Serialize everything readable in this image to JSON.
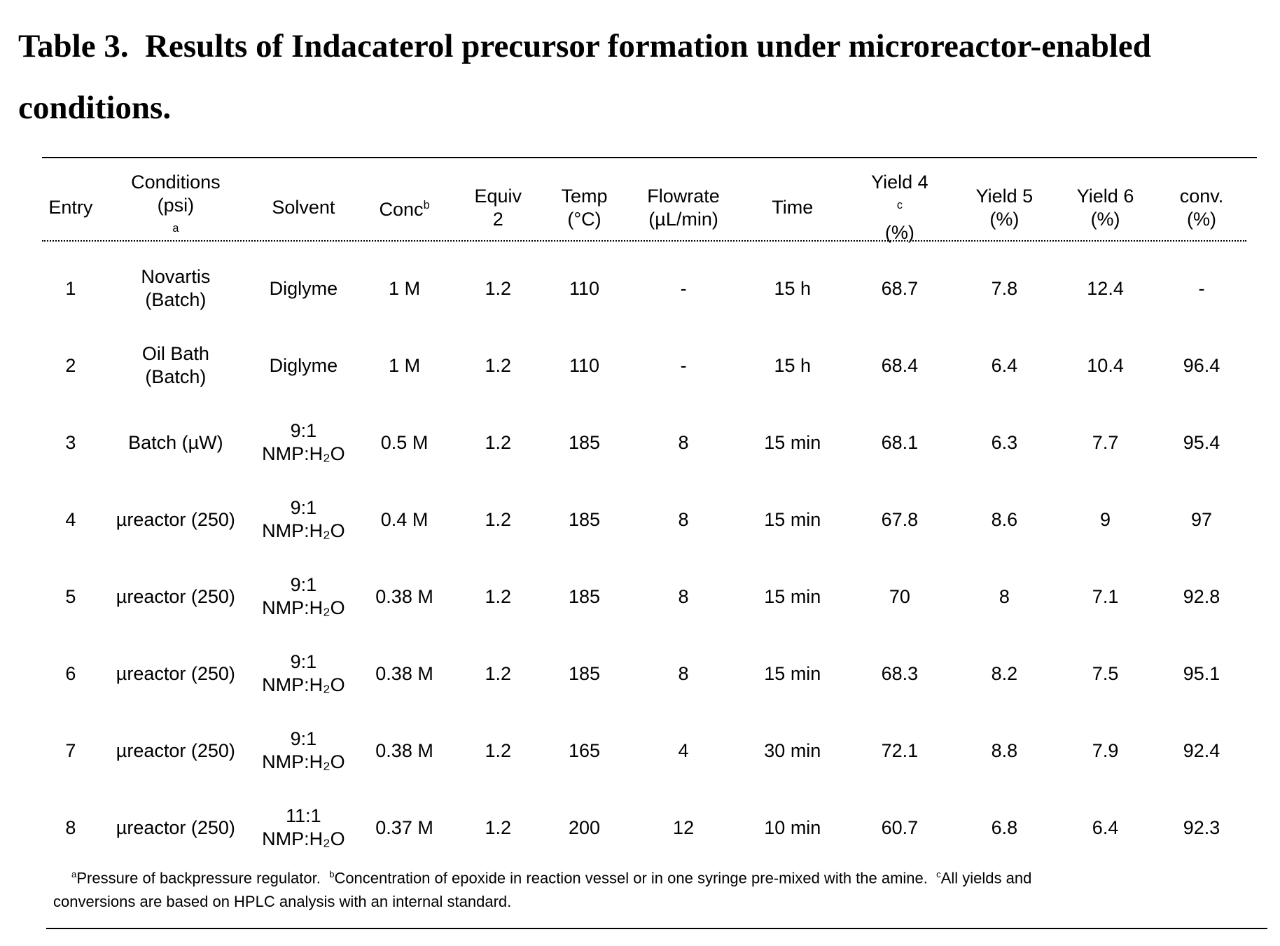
{
  "caption": {
    "label": "Table 3.",
    "text": "Results of Indacaterol precursor formation under microreactor-enabled conditions."
  },
  "table": {
    "headers": [
      {
        "line1": "Entry",
        "line2": ""
      },
      {
        "line1": "Conditions",
        "line2": "(psi)",
        "sup2": "a"
      },
      {
        "line1": "Solvent",
        "line2": ""
      },
      {
        "line1": "Conc",
        "sup1": "b",
        "line2": ""
      },
      {
        "line1": "Equiv",
        "line2": "2"
      },
      {
        "line1": "Temp",
        "line2": "(°C)"
      },
      {
        "line1": "Flowrate",
        "line2": "(µL/min)"
      },
      {
        "line1": "Time",
        "line2": ""
      },
      {
        "line1": "Yield 4",
        "sup1": "c",
        "line2": "(%)"
      },
      {
        "line1": "Yield 5",
        "line2": "(%)"
      },
      {
        "line1": "Yield 6",
        "line2": "(%)"
      },
      {
        "line1": "conv.",
        "line2": "(%)"
      }
    ],
    "rows": [
      {
        "entry": "1",
        "cond1": "Novartis",
        "cond2": "(Batch)",
        "solv1": "Diglyme",
        "solv2": "",
        "conc": "1 M",
        "equiv": "1.2",
        "temp": "110",
        "flow": "-",
        "time": "15 h",
        "y4": "68.7",
        "y5": "7.8",
        "y6": "12.4",
        "conv": "-"
      },
      {
        "entry": "2",
        "cond1": "Oil Bath",
        "cond2": "(Batch)",
        "solv1": "Diglyme",
        "solv2": "",
        "conc": "1 M",
        "equiv": "1.2",
        "temp": "110",
        "flow": "-",
        "time": "15 h",
        "y4": "68.4",
        "y5": "6.4",
        "y6": "10.4",
        "conv": "96.4"
      },
      {
        "entry": "3",
        "cond1": "Batch (µW)",
        "cond2": "",
        "solv1": "9:1",
        "solv2": "NMP:H₂O",
        "conc": "0.5 M",
        "equiv": "1.2",
        "temp": "185",
        "flow": "8",
        "time": "15 min",
        "y4": "68.1",
        "y5": "6.3",
        "y6": "7.7",
        "conv": "95.4"
      },
      {
        "entry": "4",
        "cond1": "µreactor (250)",
        "cond2": "",
        "solv1": "9:1",
        "solv2": "NMP:H₂O",
        "conc": "0.4 M",
        "equiv": "1.2",
        "temp": "185",
        "flow": "8",
        "time": "15 min",
        "y4": "67.8",
        "y5": "8.6",
        "y6": "9",
        "conv": "97"
      },
      {
        "entry": "5",
        "cond1": "µreactor (250)",
        "cond2": "",
        "solv1": "9:1",
        "solv2": "NMP:H₂O",
        "conc": "0.38 M",
        "equiv": "1.2",
        "temp": "185",
        "flow": "8",
        "time": "15 min",
        "y4": "70",
        "y5": "8",
        "y6": "7.1",
        "conv": "92.8"
      },
      {
        "entry": "6",
        "cond1": "µreactor (250)",
        "cond2": "",
        "solv1": "9:1",
        "solv2": "NMP:H₂O",
        "conc": "0.38 M",
        "equiv": "1.2",
        "temp": "185",
        "flow": "8",
        "time": "15 min",
        "y4": "68.3",
        "y5": "8.2",
        "y6": "7.5",
        "conv": "95.1"
      },
      {
        "entry": "7",
        "cond1": "µreactor (250)",
        "cond2": "",
        "solv1": "9:1",
        "solv2": "NMP:H₂O",
        "conc": "0.38 M",
        "equiv": "1.2",
        "temp": "165",
        "flow": "4",
        "time": "30 min",
        "y4": "72.1",
        "y5": "8.8",
        "y6": "7.9",
        "conv": "92.4"
      },
      {
        "entry": "8",
        "cond1": "µreactor (250)",
        "cond2": "",
        "solv1": "11:1",
        "solv2": "NMP:H₂O",
        "conc": "0.37 M",
        "equiv": "1.2",
        "temp": "200",
        "flow": "12",
        "time": "10 min",
        "y4": "60.7",
        "y5": "6.8",
        "y6": "6.4",
        "conv": "92.3"
      }
    ]
  },
  "footnotes": {
    "a_mark": "a",
    "a_text": "Pressure of backpressure regulator.",
    "b_mark": "b",
    "b_text": "Concentration of epoxide in reaction vessel or in one syringe pre-mixed with the amine.",
    "c_mark": "c",
    "c_text_1": "All yields and",
    "c_text_2": "conversions are based on HPLC analysis with an internal standard."
  }
}
